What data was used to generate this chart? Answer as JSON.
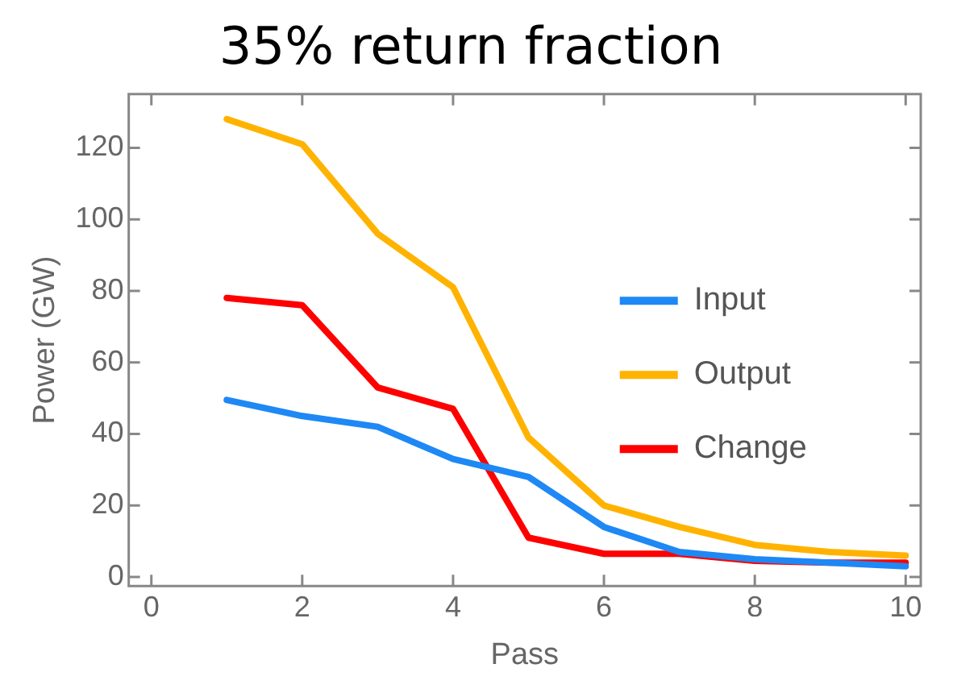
{
  "chart_data": {
    "type": "line",
    "title": "35% return fraction",
    "xlabel": "Pass",
    "ylabel": "Power (GW)",
    "x": [
      1,
      2,
      3,
      4,
      5,
      6,
      7,
      8,
      9,
      10
    ],
    "series": [
      {
        "name": "Input",
        "color": "#1e88f5",
        "values": [
          49.5,
          45,
          42,
          33,
          28,
          14,
          7,
          5,
          4,
          3
        ]
      },
      {
        "name": "Output",
        "color": "#ffb300",
        "values": [
          128,
          121,
          96,
          81,
          39,
          20,
          14,
          9,
          7,
          6
        ]
      },
      {
        "name": "Change",
        "color": "#ff0000",
        "values": [
          78,
          76,
          53,
          47,
          11,
          6.5,
          6.5,
          4.5,
          4,
          4
        ]
      }
    ],
    "xlim": [
      -0.3,
      10.2
    ],
    "ylim": [
      -2.5,
      135
    ],
    "xticks": [
      0,
      2,
      4,
      6,
      8,
      10
    ],
    "yticks": [
      0,
      20,
      40,
      60,
      80,
      100,
      120
    ],
    "grid": false,
    "legend": "right",
    "marker": "none",
    "line_style": "solid"
  }
}
